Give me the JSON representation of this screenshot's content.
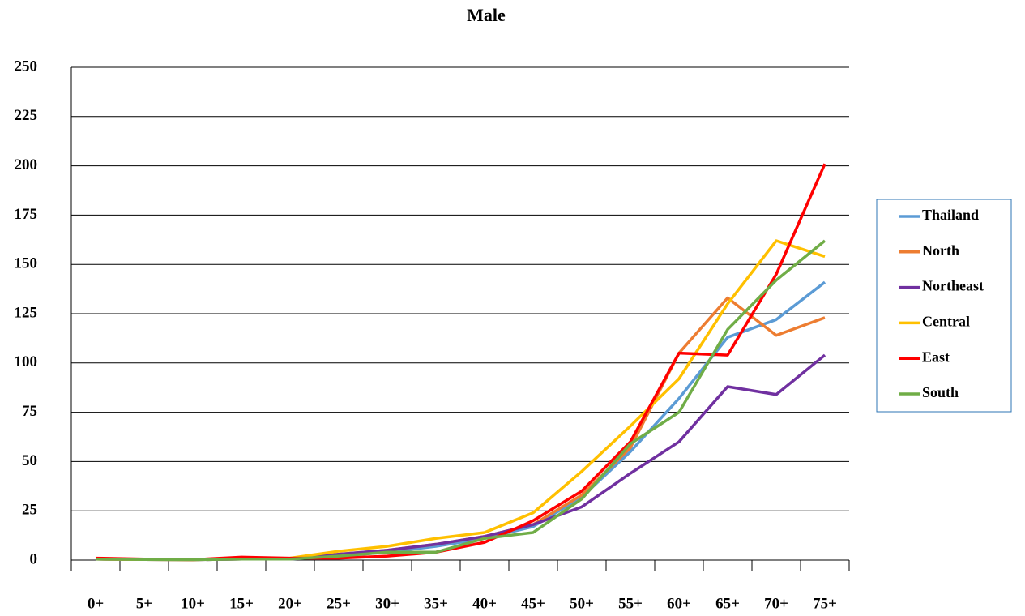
{
  "chart_data": {
    "type": "line",
    "title": "Male",
    "categories": [
      "0+",
      "5+",
      "10+",
      "15+",
      "20+",
      "25+",
      "30+",
      "35+",
      "40+",
      "45+",
      "50+",
      "55+",
      "60+",
      "65+",
      "70+",
      "75+"
    ],
    "series": [
      {
        "name": "Thailand",
        "color": "#5b9bd5",
        "values": [
          0.5,
          0.3,
          0.2,
          0.5,
          0.5,
          2,
          4,
          7,
          11,
          17,
          32,
          55,
          82,
          113,
          122,
          141
        ]
      },
      {
        "name": "North",
        "color": "#ed7d31",
        "values": [
          0.5,
          0.3,
          0.2,
          0.5,
          0.5,
          3,
          5,
          8,
          12,
          18,
          33,
          57,
          105,
          133,
          114,
          123
        ]
      },
      {
        "name": "Northeast",
        "color": "#7030a0",
        "values": [
          0.5,
          0.3,
          0.2,
          0.5,
          0.5,
          3,
          5,
          8,
          12,
          18,
          27,
          44,
          60,
          88,
          84,
          104
        ]
      },
      {
        "name": "Central",
        "color": "#ffc000",
        "values": [
          0.5,
          0.3,
          0.2,
          0.8,
          1,
          4.5,
          7,
          11,
          14,
          24,
          45,
          68,
          92,
          130,
          162,
          154
        ]
      },
      {
        "name": "East",
        "color": "#ff0000",
        "values": [
          1,
          0.5,
          0.2,
          1.5,
          1,
          1,
          2,
          4,
          9,
          20,
          35,
          60,
          105,
          104,
          145,
          201
        ]
      },
      {
        "name": "South",
        "color": "#70ad47",
        "values": [
          0.5,
          0.3,
          0.2,
          0.5,
          0.5,
          2,
          4,
          4,
          11,
          14,
          31,
          59,
          75,
          117,
          142,
          162
        ]
      }
    ],
    "ylim": [
      0,
      250
    ],
    "yticks": [
      0,
      25,
      50,
      75,
      100,
      125,
      150,
      175,
      200,
      225,
      250
    ],
    "grid": true,
    "legend": "right"
  }
}
